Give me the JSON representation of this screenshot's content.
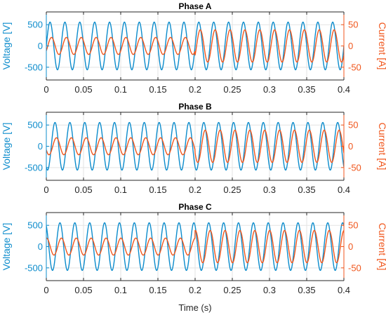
{
  "colors": {
    "voltage": "#0c8ccc",
    "current": "#f0561c",
    "axis": "#262626",
    "grid": "#e3e3e3"
  },
  "chart_data": {
    "type": "line",
    "xlabel": "Time (s)",
    "xlim": [
      0,
      0.4
    ],
    "xticks": [
      0,
      0.05,
      0.1,
      0.15,
      0.2,
      0.25,
      0.3,
      0.35,
      0.4
    ],
    "xtick_labels": [
      "0",
      "0.05",
      "0.1",
      "0.15",
      "0.2",
      "0.25",
      "0.3",
      "0.35",
      "0.4"
    ],
    "frequency_hz": 50,
    "panels": [
      {
        "title": "Phase A",
        "ylabel_left": "Voltage [V]",
        "ylabel_right": "Current [A]",
        "ylim_left": [
          -800,
          800
        ],
        "ylim_right": [
          -80,
          80
        ],
        "yticks_left": [
          -500,
          0,
          500
        ],
        "yticks_right": [
          -50,
          0,
          50
        ],
        "series": [
          {
            "axis": "left",
            "amplitude": 560,
            "phase_deg": 0
          },
          {
            "axis": "right",
            "amplitude_before": 20,
            "amplitude_after": 38,
            "step_time": 0.2,
            "phase_deg": -35
          }
        ]
      },
      {
        "title": "Phase B",
        "ylabel_left": "Voltage [V]",
        "ylabel_right": "Current [A]",
        "ylim_left": [
          -800,
          800
        ],
        "ylim_right": [
          -80,
          80
        ],
        "yticks_left": [
          -500,
          0,
          500
        ],
        "yticks_right": [
          -50,
          0,
          50
        ],
        "series": [
          {
            "axis": "left",
            "amplitude": 560,
            "phase_deg": -120
          },
          {
            "axis": "right",
            "amplitude_before": 20,
            "amplitude_after": 38,
            "step_time": 0.2,
            "phase_deg": -155
          }
        ]
      },
      {
        "title": "Phase C",
        "ylabel_left": "Voltage [V]",
        "ylabel_right": "Current [A]",
        "ylim_left": [
          -800,
          800
        ],
        "ylim_right": [
          -80,
          80
        ],
        "yticks_left": [
          -500,
          0,
          500
        ],
        "yticks_right": [
          -50,
          0,
          50
        ],
        "series": [
          {
            "axis": "left",
            "amplitude": 560,
            "phase_deg": 120
          },
          {
            "axis": "right",
            "amplitude_before": 20,
            "amplitude_after": 38,
            "step_time": 0.2,
            "phase_deg": 85
          }
        ]
      }
    ]
  }
}
